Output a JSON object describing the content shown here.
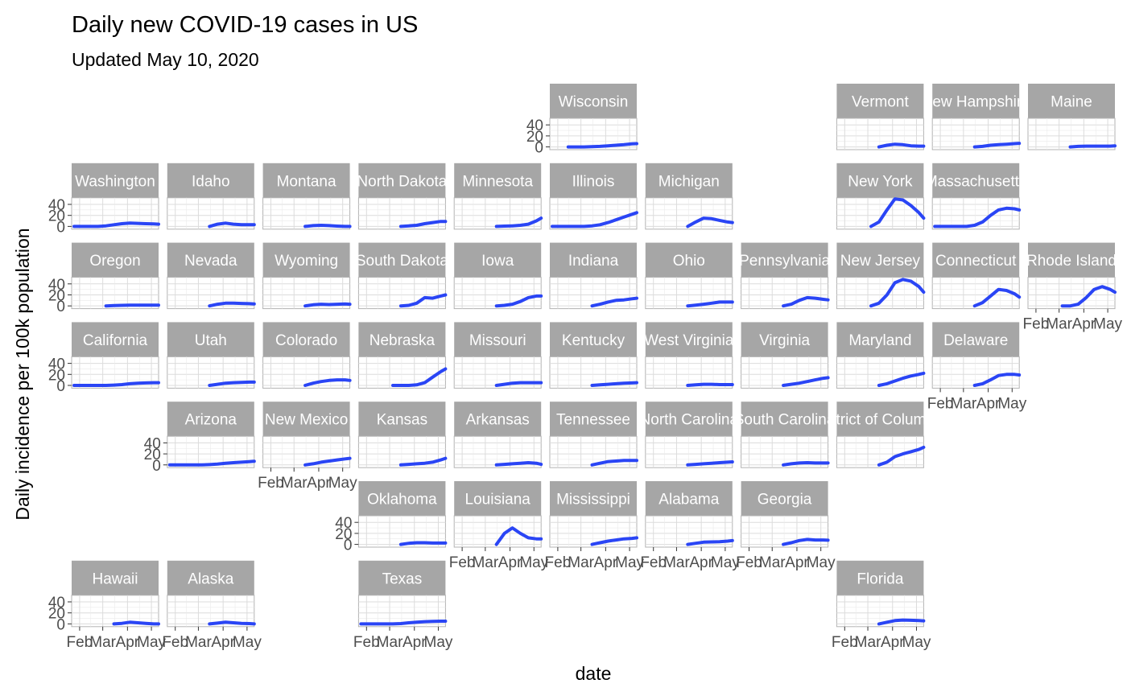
{
  "chart_data": {
    "type": "line",
    "title": "Daily new COVID-19 cases in US",
    "subtitle": "Updated May 10, 2020",
    "xlabel": "date",
    "ylabel": "Daily incidence per 100k population",
    "x_ticks": [
      "Feb",
      "Mar",
      "Apr",
      "May"
    ],
    "y_ticks": [
      0,
      20,
      40
    ],
    "x_domain": [
      "2020-01-22",
      "2020-05-10"
    ],
    "ylim": [
      -5,
      52
    ],
    "facet_layout": "geographic grid",
    "series_color": "#2a45f5",
    "x": [
      "2020-01-25",
      "2020-02-04",
      "2020-02-14",
      "2020-02-24",
      "2020-03-05",
      "2020-03-15",
      "2020-03-25",
      "2020-04-04",
      "2020-04-14",
      "2020-04-24",
      "2020-05-04",
      "2020-05-10"
    ],
    "panels": [
      {
        "state": "Wisconsin",
        "row": 0,
        "col": 5,
        "values": [
          null,
          null,
          0,
          0,
          0,
          0.5,
          1,
          2,
          3,
          4,
          5.5,
          6
        ]
      },
      {
        "state": "Vermont",
        "row": 0,
        "col": 8,
        "values": [
          null,
          null,
          null,
          null,
          null,
          0,
          3,
          5,
          4,
          2,
          1.5,
          1.5
        ]
      },
      {
        "state": "New Hampshire",
        "row": 0,
        "col": 9,
        "values": [
          null,
          null,
          null,
          null,
          null,
          0,
          1,
          3,
          4,
          5,
          6,
          6.5
        ]
      },
      {
        "state": "Maine",
        "row": 0,
        "col": 10,
        "values": [
          null,
          null,
          null,
          null,
          null,
          0,
          1,
          1.5,
          1.5,
          1.5,
          1.5,
          2
        ]
      },
      {
        "state": "Washington",
        "row": 1,
        "col": 0,
        "values": [
          0,
          0,
          0,
          0,
          1,
          3,
          5,
          6,
          5.5,
          5,
          4.5,
          4
        ]
      },
      {
        "state": "Idaho",
        "row": 1,
        "col": 1,
        "values": [
          null,
          null,
          null,
          null,
          null,
          0,
          4,
          6,
          4,
          3,
          3,
          3
        ]
      },
      {
        "state": "Montana",
        "row": 1,
        "col": 2,
        "values": [
          null,
          null,
          null,
          null,
          null,
          0,
          1.5,
          2,
          1.5,
          0.5,
          0,
          0
        ]
      },
      {
        "state": "North Dakota",
        "row": 1,
        "col": 3,
        "values": [
          null,
          null,
          null,
          null,
          null,
          0,
          1,
          2,
          5,
          7,
          9,
          9
        ]
      },
      {
        "state": "Minnesota",
        "row": 1,
        "col": 4,
        "values": [
          null,
          null,
          null,
          null,
          null,
          0,
          0.5,
          1,
          2,
          4,
          10,
          15
        ]
      },
      {
        "state": "Illinois",
        "row": 1,
        "col": 5,
        "values": [
          0,
          0,
          0,
          0,
          0,
          1,
          3,
          7,
          12,
          17,
          22,
          25
        ]
      },
      {
        "state": "Michigan",
        "row": 1,
        "col": 6,
        "values": [
          null,
          null,
          null,
          null,
          null,
          0,
          8,
          15,
          14,
          11,
          8,
          7
        ]
      },
      {
        "state": "New York",
        "row": 1,
        "col": 8,
        "values": [
          null,
          null,
          null,
          null,
          0,
          8,
          30,
          50,
          48,
          38,
          25,
          15
        ]
      },
      {
        "state": "Massachusetts",
        "row": 1,
        "col": 9,
        "values": [
          0,
          0,
          0,
          0,
          0,
          2,
          8,
          20,
          30,
          33,
          32,
          30
        ]
      },
      {
        "state": "Oregon",
        "row": 2,
        "col": 0,
        "values": [
          null,
          null,
          null,
          null,
          0,
          0.5,
          1,
          1.5,
          1.5,
          1.5,
          1.5,
          1.5
        ]
      },
      {
        "state": "Nevada",
        "row": 2,
        "col": 1,
        "values": [
          null,
          null,
          null,
          null,
          null,
          0,
          3,
          5,
          5,
          4.5,
          4,
          3.5
        ]
      },
      {
        "state": "Wyoming",
        "row": 2,
        "col": 2,
        "values": [
          null,
          null,
          null,
          null,
          null,
          0,
          2,
          3,
          2.5,
          3,
          3.5,
          3
        ]
      },
      {
        "state": "South Dakota",
        "row": 2,
        "col": 3,
        "values": [
          null,
          null,
          null,
          null,
          null,
          0,
          1,
          5,
          15,
          14,
          18,
          20
        ]
      },
      {
        "state": "Iowa",
        "row": 2,
        "col": 4,
        "values": [
          null,
          null,
          null,
          null,
          null,
          0,
          1,
          3,
          8,
          15,
          18,
          18
        ]
      },
      {
        "state": "Indiana",
        "row": 2,
        "col": 5,
        "values": [
          null,
          null,
          null,
          null,
          null,
          0,
          3,
          7,
          10,
          11,
          13,
          14
        ]
      },
      {
        "state": "Ohio",
        "row": 2,
        "col": 6,
        "values": [
          null,
          null,
          null,
          null,
          null,
          0,
          1.5,
          3,
          5,
          7,
          7,
          7
        ]
      },
      {
        "state": "Pennsylvania",
        "row": 2,
        "col": 7,
        "values": [
          null,
          null,
          null,
          null,
          null,
          0,
          3,
          10,
          15,
          14,
          12,
          11
        ]
      },
      {
        "state": "New Jersey",
        "row": 2,
        "col": 8,
        "values": [
          null,
          null,
          null,
          null,
          0,
          5,
          20,
          42,
          48,
          45,
          35,
          25
        ]
      },
      {
        "state": "Connecticut",
        "row": 2,
        "col": 9,
        "values": [
          null,
          null,
          null,
          null,
          null,
          0,
          6,
          18,
          30,
          28,
          22,
          16
        ]
      },
      {
        "state": "Rhode Island",
        "row": 2,
        "col": 10,
        "values": [
          null,
          null,
          null,
          null,
          0,
          0,
          3,
          15,
          30,
          35,
          30,
          25
        ]
      },
      {
        "state": "California",
        "row": 3,
        "col": 0,
        "values": [
          0,
          0,
          0,
          0,
          0,
          0.5,
          1.5,
          3,
          4,
          4.5,
          5,
          5
        ]
      },
      {
        "state": "Utah",
        "row": 3,
        "col": 1,
        "values": [
          null,
          null,
          null,
          null,
          null,
          0,
          2,
          4,
          5,
          5.5,
          6,
          6
        ]
      },
      {
        "state": "Colorado",
        "row": 3,
        "col": 2,
        "values": [
          null,
          null,
          null,
          null,
          null,
          0,
          4,
          7,
          9,
          10,
          10,
          9
        ]
      },
      {
        "state": "Nebraska",
        "row": 3,
        "col": 3,
        "values": [
          null,
          null,
          null,
          null,
          0,
          0,
          0,
          1,
          5,
          15,
          25,
          30
        ]
      },
      {
        "state": "Missouri",
        "row": 3,
        "col": 4,
        "values": [
          null,
          null,
          null,
          null,
          null,
          0,
          2,
          4,
          5,
          5,
          5,
          5
        ]
      },
      {
        "state": "Kentucky",
        "row": 3,
        "col": 5,
        "values": [
          null,
          null,
          null,
          null,
          null,
          0,
          1,
          2,
          3,
          4,
          4.5,
          5
        ]
      },
      {
        "state": "West Virginia",
        "row": 3,
        "col": 6,
        "values": [
          null,
          null,
          null,
          null,
          null,
          0,
          1,
          2,
          2,
          1.5,
          1.5,
          1.5
        ]
      },
      {
        "state": "Virginia",
        "row": 3,
        "col": 7,
        "values": [
          null,
          null,
          null,
          null,
          null,
          0,
          2,
          4,
          7,
          10,
          13,
          14
        ]
      },
      {
        "state": "Maryland",
        "row": 3,
        "col": 8,
        "values": [
          null,
          null,
          null,
          null,
          null,
          0,
          3,
          8,
          13,
          17,
          20,
          22
        ]
      },
      {
        "state": "Delaware",
        "row": 3,
        "col": 9,
        "values": [
          null,
          null,
          null,
          null,
          null,
          0,
          3,
          10,
          18,
          20,
          20,
          19
        ]
      },
      {
        "state": "Arizona",
        "row": 4,
        "col": 1,
        "values": [
          0,
          0,
          0,
          0,
          0,
          0.5,
          1.5,
          3,
          4,
          5,
          6,
          6.5
        ]
      },
      {
        "state": "New Mexico",
        "row": 4,
        "col": 2,
        "values": [
          null,
          null,
          null,
          null,
          null,
          0,
          2,
          5,
          7,
          9,
          11,
          12
        ]
      },
      {
        "state": "Kansas",
        "row": 4,
        "col": 3,
        "values": [
          null,
          null,
          null,
          null,
          null,
          0,
          1,
          2,
          3,
          5,
          9,
          12
        ]
      },
      {
        "state": "Arkansas",
        "row": 4,
        "col": 4,
        "values": [
          null,
          null,
          null,
          null,
          null,
          0,
          1,
          2,
          3,
          4,
          3,
          1
        ]
      },
      {
        "state": "Tennessee",
        "row": 4,
        "col": 5,
        "values": [
          null,
          null,
          null,
          null,
          null,
          0,
          3,
          6,
          7,
          8,
          8,
          8
        ]
      },
      {
        "state": "North Carolina",
        "row": 4,
        "col": 6,
        "values": [
          null,
          null,
          null,
          null,
          null,
          0,
          1,
          2,
          3,
          4,
          5,
          5.5
        ]
      },
      {
        "state": "South Carolina",
        "row": 4,
        "col": 7,
        "values": [
          null,
          null,
          null,
          null,
          null,
          0,
          2,
          3.5,
          4,
          3.5,
          3.5,
          3.5
        ]
      },
      {
        "state": "District of Columbia",
        "row": 4,
        "col": 8,
        "values": [
          null,
          null,
          null,
          null,
          null,
          0,
          5,
          15,
          20,
          24,
          28,
          32
        ]
      },
      {
        "state": "Oklahoma",
        "row": 5,
        "col": 3,
        "values": [
          null,
          null,
          null,
          null,
          null,
          0,
          2,
          3,
          3,
          2.5,
          2.5,
          2.5
        ]
      },
      {
        "state": "Louisiana",
        "row": 5,
        "col": 4,
        "values": [
          null,
          null,
          null,
          null,
          null,
          0,
          20,
          30,
          20,
          12,
          10,
          10
        ]
      },
      {
        "state": "Mississippi",
        "row": 5,
        "col": 5,
        "values": [
          null,
          null,
          null,
          null,
          null,
          0,
          3,
          6,
          8,
          10,
          11,
          12
        ]
      },
      {
        "state": "Alabama",
        "row": 5,
        "col": 6,
        "values": [
          null,
          null,
          null,
          null,
          null,
          0,
          2,
          4,
          4.5,
          5,
          6,
          7
        ]
      },
      {
        "state": "Georgia",
        "row": 5,
        "col": 7,
        "values": [
          null,
          null,
          null,
          null,
          null,
          0,
          3,
          7,
          9,
          8,
          8,
          7.5
        ]
      },
      {
        "state": "Hawaii",
        "row": 6,
        "col": 0,
        "values": [
          null,
          null,
          null,
          null,
          null,
          0,
          1,
          3,
          2,
          1,
          0,
          0
        ]
      },
      {
        "state": "Alaska",
        "row": 6,
        "col": 1,
        "values": [
          null,
          null,
          null,
          null,
          null,
          0,
          1.5,
          3,
          2,
          1,
          0.5,
          0
        ]
      },
      {
        "state": "Texas",
        "row": 6,
        "col": 3,
        "values": [
          0,
          0,
          0,
          0,
          0,
          0.5,
          2,
          3,
          4,
          4.5,
          5,
          5
        ]
      },
      {
        "state": "Florida",
        "row": 6,
        "col": 8,
        "values": [
          null,
          null,
          null,
          null,
          null,
          0,
          3,
          6,
          7,
          6.5,
          6,
          5.5
        ]
      }
    ]
  }
}
